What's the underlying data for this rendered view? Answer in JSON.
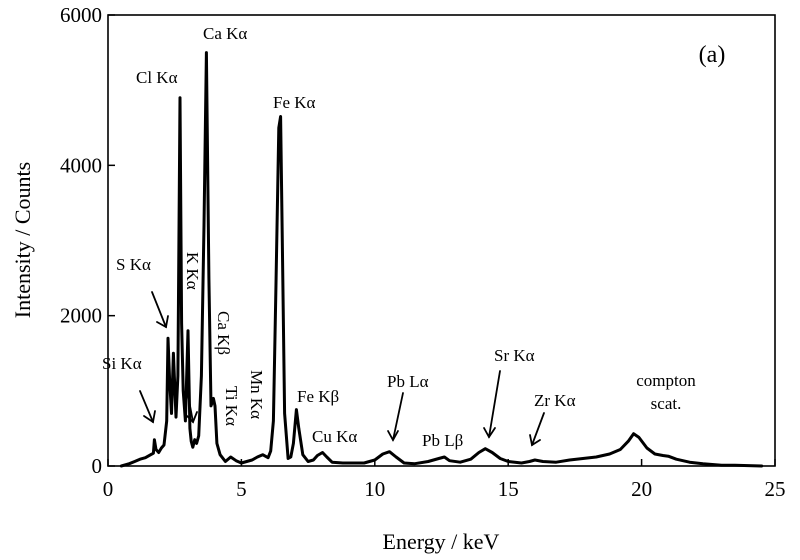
{
  "chart_data": {
    "type": "line",
    "title": "",
    "panel_label": "(a)",
    "xlabel": "Energy / keV",
    "ylabel": "Intensity / Counts",
    "xlim": [
      0,
      25
    ],
    "ylim": [
      0,
      6000
    ],
    "x_ticks": [
      0,
      5,
      10,
      15,
      20,
      25
    ],
    "y_ticks": [
      0,
      2000,
      4000,
      6000
    ],
    "grid": false,
    "legend": "none",
    "line_color": "#000000",
    "series": [
      {
        "x": [
          0.5,
          0.8,
          1.0,
          1.2,
          1.4,
          1.6,
          1.7,
          1.74,
          1.8,
          1.9,
          2.0,
          2.1,
          2.2,
          2.25,
          2.31,
          2.38,
          2.45,
          2.55,
          2.62,
          2.7,
          2.76,
          2.82,
          2.9,
          3.0,
          3.07,
          3.12,
          3.18,
          3.25,
          3.32,
          3.4,
          3.5,
          3.6,
          3.69,
          3.78,
          3.86,
          3.95,
          4.01,
          4.08,
          4.2,
          4.4,
          4.6,
          4.8,
          5.0,
          5.2,
          5.4,
          5.6,
          5.8,
          5.9,
          6.0,
          6.1,
          6.2,
          6.3,
          6.4,
          6.47,
          6.54,
          6.62,
          6.75,
          6.85,
          6.95,
          7.06,
          7.15,
          7.3,
          7.5,
          7.7,
          7.85,
          8.04,
          8.2,
          8.4,
          8.8,
          9.2,
          9.6,
          10.0,
          10.3,
          10.55,
          10.8,
          11.1,
          11.5,
          12.0,
          12.4,
          12.61,
          12.8,
          13.2,
          13.6,
          13.9,
          14.14,
          14.4,
          14.7,
          15.0,
          15.5,
          15.8,
          16.0,
          16.3,
          16.8,
          17.3,
          17.8,
          18.3,
          18.8,
          19.2,
          19.5,
          19.7,
          19.9,
          20.2,
          20.5,
          20.8,
          21.0,
          21.3,
          21.8,
          22.3,
          23.0,
          23.5,
          24.0,
          24.5
        ],
        "y": [
          0,
          30,
          60,
          90,
          110,
          150,
          170,
          350,
          220,
          180,
          240,
          280,
          600,
          1700,
          1150,
          700,
          1500,
          650,
          1200,
          4900,
          1900,
          1000,
          600,
          1800,
          500,
          330,
          250,
          350,
          300,
          400,
          1200,
          3200,
          5500,
          2500,
          800,
          900,
          800,
          300,
          150,
          60,
          120,
          70,
          40,
          60,
          80,
          120,
          150,
          130,
          110,
          200,
          600,
          2500,
          4500,
          4650,
          2800,
          700,
          100,
          120,
          300,
          750,
          500,
          150,
          60,
          80,
          140,
          180,
          120,
          50,
          40,
          40,
          40,
          80,
          160,
          190,
          120,
          40,
          30,
          60,
          100,
          120,
          70,
          50,
          90,
          180,
          230,
          180,
          100,
          60,
          40,
          60,
          80,
          60,
          50,
          80,
          100,
          120,
          160,
          220,
          330,
          430,
          380,
          240,
          160,
          140,
          130,
          90,
          50,
          30,
          10,
          10,
          5,
          0
        ]
      }
    ],
    "annotations": [
      {
        "text": "Si Kα"
      },
      {
        "text": "S Kα"
      },
      {
        "text": "Cl Kα"
      },
      {
        "text": "K Kα"
      },
      {
        "text": "Ca Kα"
      },
      {
        "text": "Ca Kβ"
      },
      {
        "text": "Ti Kα"
      },
      {
        "text": "Mn Kα"
      },
      {
        "text": "Fe Kα"
      },
      {
        "text": "Fe Kβ"
      },
      {
        "text": "Cu Kα"
      },
      {
        "text": "Pb Lα"
      },
      {
        "text": "Pb Lβ"
      },
      {
        "text": "Sr Kα"
      },
      {
        "text": "Zr Kα"
      },
      {
        "text": "compton"
      },
      {
        "text": "scat."
      }
    ]
  }
}
